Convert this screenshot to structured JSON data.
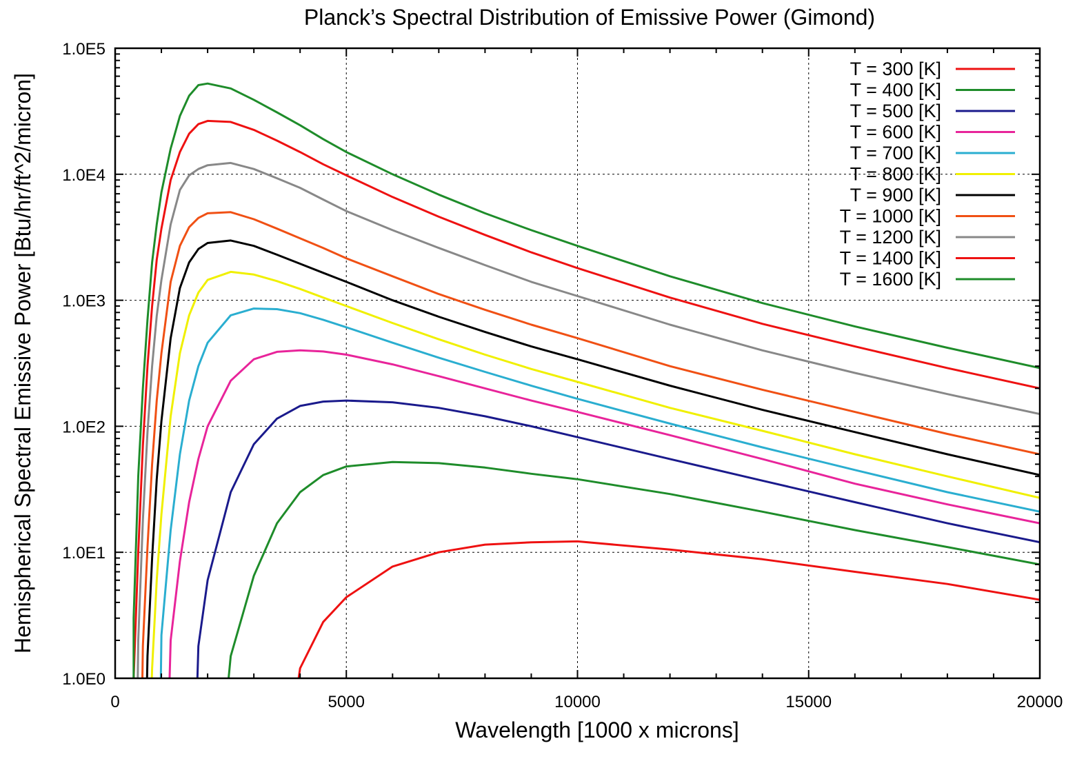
{
  "chart_data": {
    "type": "line",
    "title": "Planck’s Spectral Distribution of Emissive Power (Gimond)",
    "xlabel": "Wavelength [1000 x microns]",
    "ylabel": "Hemispherical Spectral Emissive Power [Btu/hr/ft^2/micron]",
    "xscale": "linear",
    "yscale": "log",
    "xlim": [
      0,
      20000
    ],
    "ylim": [
      1,
      100000
    ],
    "grid": true,
    "legend_position": "top-right",
    "x_ticks": [
      {
        "value": 0,
        "label": "0"
      },
      {
        "value": 5000,
        "label": "5000"
      },
      {
        "value": 10000,
        "label": "10000"
      },
      {
        "value": 15000,
        "label": "15000"
      },
      {
        "value": 20000,
        "label": "20000"
      }
    ],
    "y_ticks": [
      {
        "value": 1,
        "label": "1.0E0"
      },
      {
        "value": 10,
        "label": "1.0E1"
      },
      {
        "value": 100,
        "label": "1.0E2"
      },
      {
        "value": 1000,
        "label": "1.0E3"
      },
      {
        "value": 10000,
        "label": "1.0E4"
      },
      {
        "value": 100000,
        "label": "1.0E5"
      }
    ],
    "x": [
      400,
      500,
      600,
      700,
      800,
      900,
      1000,
      1200,
      1400,
      1600,
      1800,
      2000,
      2500,
      3000,
      3500,
      4000,
      4500,
      5000,
      6000,
      7000,
      8000,
      9000,
      10000,
      12000,
      14000,
      16000,
      18000,
      20000
    ],
    "series": [
      {
        "name": "T = 300 [K]",
        "color": "#ee1111",
        "values": [
          null,
          null,
          null,
          null,
          null,
          null,
          null,
          null,
          null,
          null,
          null,
          null,
          null,
          null,
          null,
          1.2,
          2.8,
          4.4,
          7.7,
          10.0,
          11.5,
          12.0,
          12.2,
          10.5,
          8.8,
          7.0,
          5.6,
          4.2
        ]
      },
      {
        "name": "T = 400 [K]",
        "color": "#1e8c2a",
        "values": [
          null,
          null,
          null,
          null,
          null,
          null,
          null,
          null,
          null,
          null,
          null,
          null,
          1.5,
          6.5,
          17.0,
          30.0,
          41.0,
          48.0,
          52.0,
          51.0,
          47.0,
          42.0,
          38.0,
          29.0,
          21.0,
          15.0,
          11.0,
          8.0
        ]
      },
      {
        "name": "T = 500 [K]",
        "color": "#1a1a8c",
        "values": [
          null,
          null,
          null,
          null,
          null,
          null,
          null,
          null,
          null,
          null,
          1.8,
          6.0,
          30.0,
          72.0,
          115.0,
          145.0,
          157.0,
          160.0,
          155.0,
          140.0,
          120.0,
          100.0,
          82.0,
          55.0,
          37.0,
          25.0,
          17.0,
          12.0
        ]
      },
      {
        "name": "T = 600 [K]",
        "color": "#e8249a",
        "values": [
          null,
          null,
          null,
          null,
          null,
          null,
          null,
          2.0,
          8.5,
          25.0,
          55.0,
          100.0,
          230.0,
          340.0,
          390.0,
          400.0,
          392.0,
          370.0,
          310.0,
          250.0,
          200.0,
          160.0,
          130.0,
          85.0,
          55.0,
          35.0,
          24.0,
          17.0
        ]
      },
      {
        "name": "T = 700 [K]",
        "color": "#2aaed0",
        "values": [
          null,
          null,
          null,
          null,
          null,
          null,
          2.2,
          15.0,
          60.0,
          160.0,
          300.0,
          460.0,
          760.0,
          860.0,
          850.0,
          790.0,
          700.0,
          610.0,
          460.0,
          350.0,
          270.0,
          210.0,
          165.0,
          105.0,
          68.0,
          45.0,
          30.0,
          21.0
        ]
      },
      {
        "name": "T = 800 [K]",
        "color": "#f0f000",
        "values": [
          null,
          null,
          null,
          null,
          1.2,
          6.0,
          20.0,
          120.0,
          380.0,
          760.0,
          1150.0,
          1450.0,
          1680.0,
          1600.0,
          1420.0,
          1230.0,
          1050.0,
          900.0,
          660.0,
          490.0,
          370.0,
          285.0,
          225.0,
          140.0,
          92.0,
          60.0,
          40.0,
          27.0
        ]
      },
      {
        "name": "T = 900 [K]",
        "color": "#000000",
        "values": [
          null,
          null,
          null,
          1.5,
          9.0,
          38.0,
          110.0,
          500.0,
          1250.0,
          2000.0,
          2550.0,
          2850.0,
          2980.0,
          2700.0,
          2300.0,
          1950.0,
          1650.0,
          1400.0,
          1000.0,
          740.0,
          560.0,
          430.0,
          340.0,
          210.0,
          135.0,
          90.0,
          60.0,
          41.0
        ]
      },
      {
        "name": "T = 1000 [K]",
        "color": "#f05014",
        "values": [
          null,
          null,
          1.8,
          11.0,
          50.0,
          160.0,
          380.0,
          1400.0,
          2700.0,
          3800.0,
          4500.0,
          4900.0,
          5000.0,
          4400.0,
          3700.0,
          3100.0,
          2600.0,
          2150.0,
          1550.0,
          1120.0,
          840.0,
          640.0,
          500.0,
          300.0,
          195.0,
          130.0,
          87.0,
          60.0
        ]
      },
      {
        "name": "T = 1200 [K]",
        "color": "#888888",
        "values": [
          null,
          2.0,
          18.0,
          90.0,
          300.0,
          750.0,
          1450.0,
          4000.0,
          7500.0,
          9800.0,
          11000.0,
          11800.0,
          12300.0,
          11000.0,
          9300.0,
          7800.0,
          6300.0,
          5100.0,
          3600.0,
          2600.0,
          1900.0,
          1400.0,
          1080.0,
          640.0,
          400.0,
          265.0,
          180.0,
          125.0
        ]
      },
      {
        "name": "T = 1400 [K]",
        "color": "#ee1111",
        "values": [
          1.0,
          10.0,
          70.0,
          300.0,
          900.0,
          2100.0,
          3700.0,
          9000.0,
          15000.0,
          21000.0,
          25000.0,
          26500.0,
          26000.0,
          22500.0,
          18500.0,
          15000.0,
          12000.0,
          9800.0,
          6600.0,
          4600.0,
          3300.0,
          2400.0,
          1800.0,
          1050.0,
          650.0,
          430.0,
          290.0,
          200.0
        ]
      },
      {
        "name": "T = 1600 [K]",
        "color": "#1e8c2a",
        "values": [
          3.0,
          40.0,
          200.0,
          700.0,
          2000.0,
          4000.0,
          7200.0,
          16000.0,
          29000.0,
          42000.0,
          51000.0,
          52500.0,
          48000.0,
          39000.0,
          31000.0,
          24500.0,
          19000.0,
          15000.0,
          10000.0,
          6900.0,
          4900.0,
          3600.0,
          2700.0,
          1550.0,
          950.0,
          620.0,
          420.0,
          290.0
        ]
      }
    ]
  }
}
